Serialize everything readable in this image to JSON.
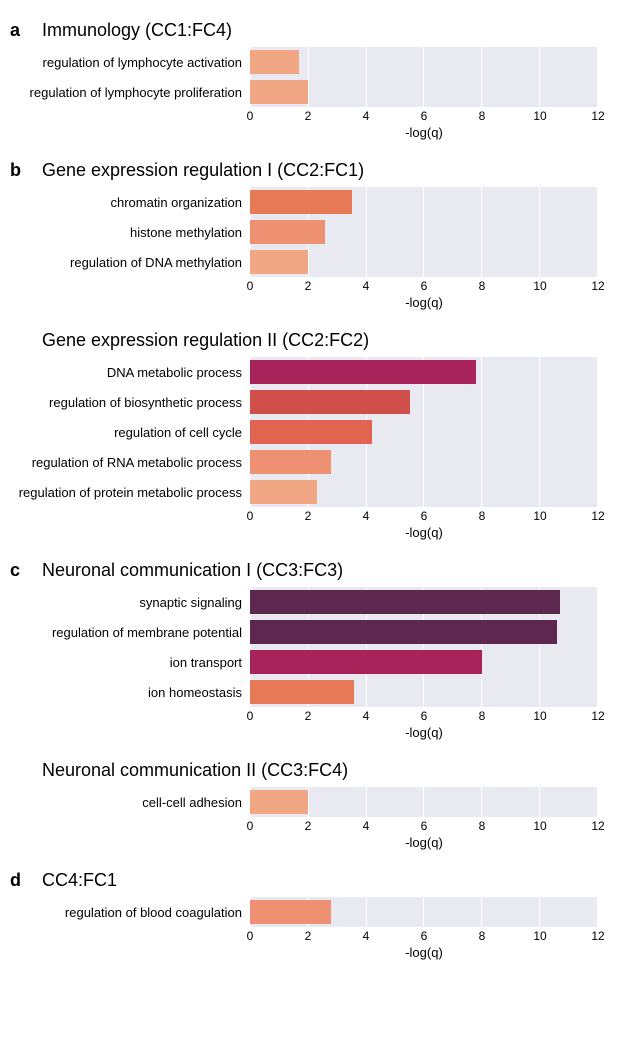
{
  "xaxis": {
    "min": 0,
    "max": 12,
    "ticks": [
      0,
      2,
      4,
      6,
      8,
      10,
      12
    ],
    "label": "-log(q)",
    "grid_color": "#ffffff",
    "plot_bg": "#e9e9f2",
    "tick_fontsize": 12,
    "label_fontsize": 13
  },
  "panels": [
    {
      "letter": "a",
      "charts": [
        {
          "title": "Immunology (CC1:FC4)",
          "bars": [
            {
              "label": "regulation of lymphocyte activation",
              "value": 1.7,
              "color": "#f1a684"
            },
            {
              "label": "regulation of lymphocyte proliferation",
              "value": 2.0,
              "color": "#f1a684"
            }
          ]
        }
      ]
    },
    {
      "letter": "b",
      "charts": [
        {
          "title": "Gene expression regulation I (CC2:FC1)",
          "bars": [
            {
              "label": "chromatin organization",
              "value": 3.5,
              "color": "#e67a56"
            },
            {
              "label": "histone methylation",
              "value": 2.6,
              "color": "#ed9172"
            },
            {
              "label": "regulation of DNA methylation",
              "value": 2.0,
              "color": "#f1a684"
            }
          ]
        },
        {
          "title": "Gene expression regulation II (CC2:FC2)",
          "bars": [
            {
              "label": "DNA metabolic process",
              "value": 7.8,
              "color": "#a7235a"
            },
            {
              "label": "regulation of biosynthetic process",
              "value": 5.5,
              "color": "#d14f4b"
            },
            {
              "label": "regulation of cell cycle",
              "value": 4.2,
              "color": "#e06450"
            },
            {
              "label": "regulation of RNA metabolic process",
              "value": 2.8,
              "color": "#ed9172"
            },
            {
              "label": "regulation of protein metabolic process",
              "value": 2.3,
              "color": "#f1a684"
            }
          ]
        }
      ]
    },
    {
      "letter": "c",
      "charts": [
        {
          "title": "Neuronal communication I (CC3:FC3)",
          "bars": [
            {
              "label": "synaptic signaling",
              "value": 10.7,
              "color": "#5d2850"
            },
            {
              "label": "regulation of membrane potential",
              "value": 10.6,
              "color": "#5d2850"
            },
            {
              "label": "ion transport",
              "value": 8.0,
              "color": "#a7235a"
            },
            {
              "label": "ion homeostasis",
              "value": 3.6,
              "color": "#e67a56"
            }
          ]
        },
        {
          "title": "Neuronal communication II (CC3:FC4)",
          "bars": [
            {
              "label": "cell-cell adhesion",
              "value": 2.0,
              "color": "#f1a684"
            }
          ]
        }
      ]
    },
    {
      "letter": "d",
      "charts": [
        {
          "title": "CC4:FC1",
          "bars": [
            {
              "label": "regulation of blood coagulation",
              "value": 2.8,
              "color": "#ed9172"
            }
          ]
        }
      ]
    }
  ]
}
